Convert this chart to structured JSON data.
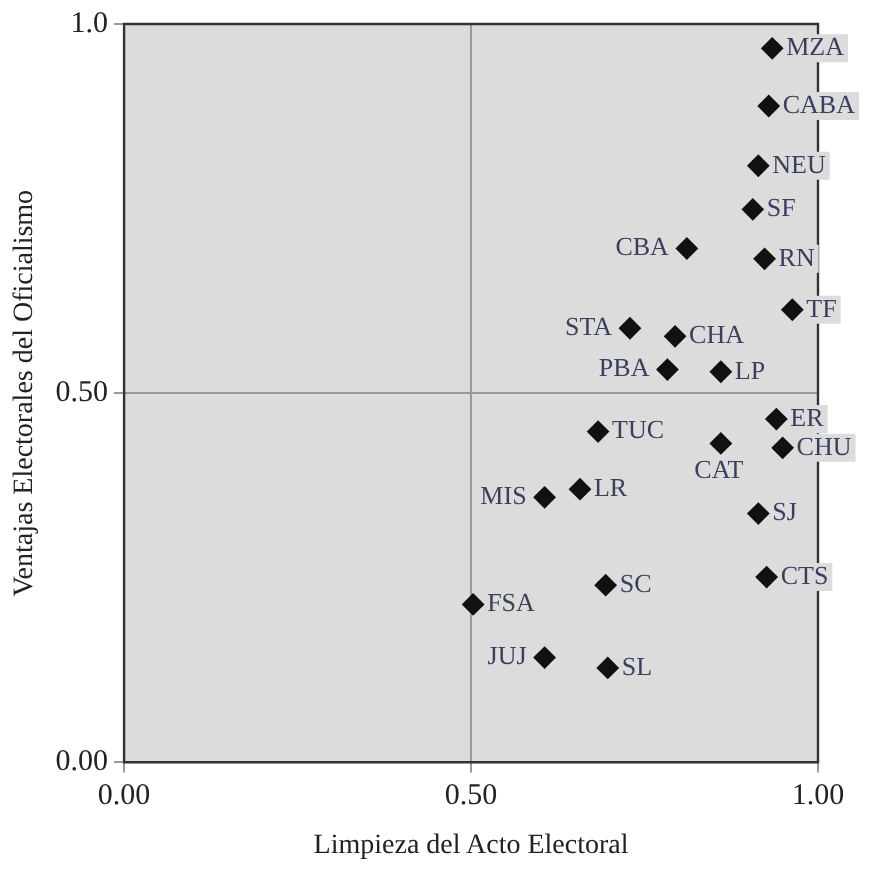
{
  "chart_data": {
    "type": "scatter",
    "xlabel": "Limpieza del Acto Electoral",
    "ylabel": "Ventajas Electorales del Oficialismo",
    "xlim": [
      0,
      1
    ],
    "ylim": [
      0,
      1
    ],
    "xticks": [
      {
        "value": 0,
        "label": "0.00"
      },
      {
        "value": 0.5,
        "label": "0.50"
      },
      {
        "value": 1,
        "label": "1.00"
      }
    ],
    "yticks": [
      {
        "value": 0,
        "label": "0.00"
      },
      {
        "value": 0.5,
        "label": "0.50"
      },
      {
        "value": 1,
        "label": "1.0"
      }
    ],
    "grid": true,
    "legend": false,
    "marker": "diamond",
    "series": [
      {
        "color": "#111111",
        "x": [
          0.934,
          0.929,
          0.914,
          0.906,
          0.811,
          0.923,
          0.963,
          0.729,
          0.794,
          0.783,
          0.86,
          0.94,
          0.683,
          0.86,
          0.949,
          0.657,
          0.606,
          0.914,
          0.926,
          0.694,
          0.503,
          0.606,
          0.697
        ],
        "values": [
          0.967,
          0.889,
          0.808,
          0.749,
          0.696,
          0.682,
          0.613,
          0.588,
          0.577,
          0.532,
          0.529,
          0.465,
          0.448,
          0.432,
          0.426,
          0.37,
          0.359,
          0.337,
          0.251,
          0.24,
          0.214,
          0.142,
          0.128
        ]
      }
    ],
    "annotations": [
      {
        "text": "MZA",
        "x": 0.934,
        "y": 0.967
      },
      {
        "text": "CABA",
        "x": 0.929,
        "y": 0.889
      },
      {
        "text": "NEU",
        "x": 0.914,
        "y": 0.808
      },
      {
        "text": "SF",
        "x": 0.906,
        "y": 0.749
      },
      {
        "text": "CBA",
        "x": 0.811,
        "y": 0.696
      },
      {
        "text": "RN",
        "x": 0.923,
        "y": 0.682
      },
      {
        "text": "TF",
        "x": 0.963,
        "y": 0.613
      },
      {
        "text": "STA",
        "x": 0.729,
        "y": 0.588
      },
      {
        "text": "CHA",
        "x": 0.794,
        "y": 0.577
      },
      {
        "text": "PBA",
        "x": 0.783,
        "y": 0.532
      },
      {
        "text": "LP",
        "x": 0.86,
        "y": 0.529
      },
      {
        "text": "ER",
        "x": 0.94,
        "y": 0.465
      },
      {
        "text": "TUC",
        "x": 0.683,
        "y": 0.448
      },
      {
        "text": "CAT",
        "x": 0.86,
        "y": 0.432
      },
      {
        "text": "CHU",
        "x": 0.949,
        "y": 0.426
      },
      {
        "text": "LR",
        "x": 0.657,
        "y": 0.37
      },
      {
        "text": "MIS",
        "x": 0.606,
        "y": 0.359
      },
      {
        "text": "SJ",
        "x": 0.914,
        "y": 0.337
      },
      {
        "text": "CTS",
        "x": 0.926,
        "y": 0.251
      },
      {
        "text": "SC",
        "x": 0.694,
        "y": 0.24
      },
      {
        "text": "FSA",
        "x": 0.503,
        "y": 0.214
      },
      {
        "text": "JUJ",
        "x": 0.606,
        "y": 0.142
      },
      {
        "text": "SL",
        "x": 0.697,
        "y": 0.128
      }
    ]
  }
}
